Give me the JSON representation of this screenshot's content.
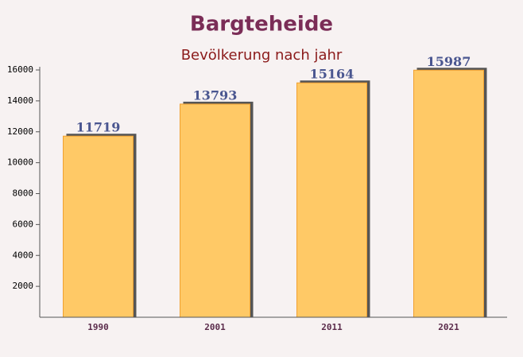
{
  "chart_data": {
    "type": "bar",
    "title": "Bargteheide",
    "subtitle": "Bevölkerung nach jahr",
    "categories": [
      "1990",
      "2001",
      "2011",
      "2021"
    ],
    "values": [
      11719,
      13793,
      15164,
      15987
    ],
    "color": "#ffc966",
    "ylim": [
      0,
      16000
    ],
    "yticks": [
      2000,
      4000,
      6000,
      8000,
      10000,
      12000,
      14000,
      16000
    ]
  }
}
